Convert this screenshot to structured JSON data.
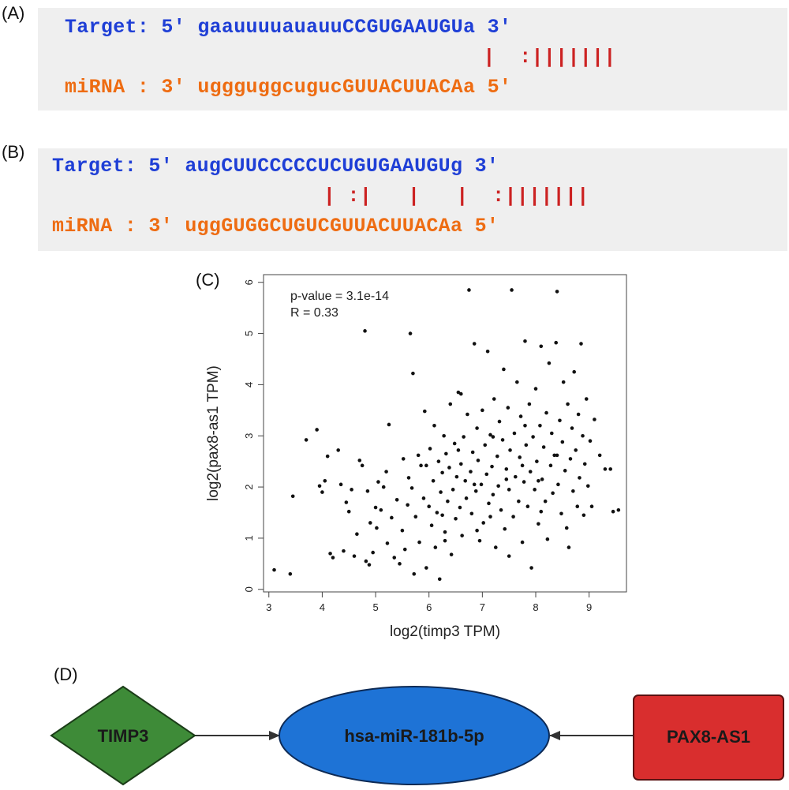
{
  "panels": {
    "A": {
      "label": "(A)",
      "target_line": "Target: 5' gaauuuuauauuCCGUGAAUGUa 3'",
      "pair_line": "           |  :|||||||",
      "mirna_line": "miRNA : 3' uggguggcugucGUUACUUACAa 5'"
    },
    "B": {
      "label": "(B)",
      "target_line": "Target: 5' augCUUCCCCCUCUGUGAAUGUg 3'",
      "pair_line": "   | :|   |   |  :|||||||",
      "mirna_line": "miRNA : 3' uggGUGGCUGUCGUUACUUACAa 5'"
    },
    "C": {
      "label": "(C)"
    },
    "D": {
      "label": "(D)"
    }
  },
  "chart_data": {
    "type": "scatter",
    "xlabel": "log2(timp3 TPM)",
    "ylabel": "log2(pax8-as1 TPM)",
    "xlim": [
      2.9,
      9.7
    ],
    "ylim": [
      -0.05,
      6.15
    ],
    "xticks": [
      "3",
      "4",
      "5",
      "6",
      "7",
      "8",
      "9"
    ],
    "yticks": [
      "0",
      "1",
      "2",
      "3",
      "4",
      "5",
      "6"
    ],
    "annotations": [
      "p-value = 3.1e-14",
      "R = 0.33"
    ],
    "points": [
      [
        3.1,
        0.38
      ],
      [
        3.4,
        0.3
      ],
      [
        3.45,
        1.82
      ],
      [
        3.7,
        2.92
      ],
      [
        3.9,
        3.12
      ],
      [
        3.95,
        2.02
      ],
      [
        4.0,
        1.9
      ],
      [
        4.05,
        2.12
      ],
      [
        4.1,
        2.6
      ],
      [
        4.15,
        0.7
      ],
      [
        4.2,
        0.62
      ],
      [
        4.3,
        2.72
      ],
      [
        4.35,
        2.05
      ],
      [
        4.4,
        0.75
      ],
      [
        4.45,
        1.7
      ],
      [
        4.5,
        1.52
      ],
      [
        4.55,
        1.95
      ],
      [
        4.6,
        0.65
      ],
      [
        4.65,
        1.08
      ],
      [
        4.7,
        2.52
      ],
      [
        4.75,
        2.42
      ],
      [
        4.8,
        5.05
      ],
      [
        4.82,
        0.55
      ],
      [
        4.85,
        1.92
      ],
      [
        4.88,
        0.48
      ],
      [
        4.9,
        1.3
      ],
      [
        4.95,
        0.72
      ],
      [
        5.0,
        1.6
      ],
      [
        5.02,
        1.2
      ],
      [
        5.05,
        2.1
      ],
      [
        5.1,
        1.55
      ],
      [
        5.15,
        2.0
      ],
      [
        5.2,
        2.3
      ],
      [
        5.22,
        0.9
      ],
      [
        5.25,
        3.22
      ],
      [
        5.3,
        1.4
      ],
      [
        5.35,
        0.62
      ],
      [
        5.4,
        1.75
      ],
      [
        5.45,
        0.5
      ],
      [
        5.5,
        1.15
      ],
      [
        5.52,
        2.55
      ],
      [
        5.55,
        0.78
      ],
      [
        5.6,
        1.65
      ],
      [
        5.62,
        2.18
      ],
      [
        5.65,
        5.0
      ],
      [
        5.68,
        1.98
      ],
      [
        5.7,
        4.22
      ],
      [
        5.72,
        0.3
      ],
      [
        5.75,
        1.42
      ],
      [
        5.8,
        2.62
      ],
      [
        5.82,
        0.92
      ],
      [
        5.85,
        2.42
      ],
      [
        5.9,
        1.78
      ],
      [
        5.92,
        3.48
      ],
      [
        5.95,
        0.42
      ],
      [
        6.0,
        1.62
      ],
      [
        6.02,
        2.75
      ],
      [
        6.05,
        1.25
      ],
      [
        6.08,
        2.12
      ],
      [
        6.1,
        3.2
      ],
      [
        6.12,
        0.82
      ],
      [
        6.15,
        1.5
      ],
      [
        6.18,
        2.5
      ],
      [
        6.2,
        0.2
      ],
      [
        6.22,
        1.9
      ],
      [
        6.25,
        2.28
      ],
      [
        6.28,
        3.0
      ],
      [
        6.3,
        1.12
      ],
      [
        6.32,
        2.65
      ],
      [
        6.35,
        1.72
      ],
      [
        6.38,
        2.38
      ],
      [
        6.4,
        3.62
      ],
      [
        6.42,
        0.68
      ],
      [
        6.45,
        1.95
      ],
      [
        6.48,
        2.85
      ],
      [
        6.5,
        1.38
      ],
      [
        6.52,
        2.2
      ],
      [
        6.55,
        3.85
      ],
      [
        6.58,
        1.6
      ],
      [
        6.6,
        2.45
      ],
      [
        6.62,
        1.05
      ],
      [
        6.65,
        2.98
      ],
      [
        6.68,
        2.12
      ],
      [
        6.7,
        1.78
      ],
      [
        6.72,
        3.42
      ],
      [
        6.75,
        5.85
      ],
      [
        6.78,
        2.3
      ],
      [
        6.8,
        1.48
      ],
      [
        6.82,
        2.68
      ],
      [
        6.85,
        4.8
      ],
      [
        6.88,
        1.92
      ],
      [
        6.9,
        3.15
      ],
      [
        6.92,
        2.52
      ],
      [
        6.95,
        0.95
      ],
      [
        6.98,
        2.05
      ],
      [
        7.0,
        3.5
      ],
      [
        7.02,
        1.3
      ],
      [
        7.05,
        2.82
      ],
      [
        7.08,
        2.25
      ],
      [
        7.1,
        4.65
      ],
      [
        7.12,
        1.68
      ],
      [
        7.15,
        3.02
      ],
      [
        7.18,
        2.4
      ],
      [
        7.2,
        1.85
      ],
      [
        7.22,
        3.72
      ],
      [
        7.25,
        0.82
      ],
      [
        7.28,
        2.6
      ],
      [
        7.3,
        2.02
      ],
      [
        7.32,
        3.28
      ],
      [
        7.35,
        1.55
      ],
      [
        7.38,
        2.92
      ],
      [
        7.4,
        4.3
      ],
      [
        7.42,
        1.18
      ],
      [
        7.45,
        2.35
      ],
      [
        7.48,
        3.55
      ],
      [
        7.5,
        1.95
      ],
      [
        7.52,
        2.72
      ],
      [
        7.55,
        5.85
      ],
      [
        7.58,
        1.42
      ],
      [
        7.6,
        3.05
      ],
      [
        7.62,
        2.2
      ],
      [
        7.65,
        4.05
      ],
      [
        7.68,
        1.72
      ],
      [
        7.7,
        2.58
      ],
      [
        7.72,
        3.38
      ],
      [
        7.75,
        0.92
      ],
      [
        7.78,
        2.1
      ],
      [
        7.8,
        4.85
      ],
      [
        7.82,
        2.82
      ],
      [
        7.85,
        1.62
      ],
      [
        7.88,
        3.62
      ],
      [
        7.9,
        2.3
      ],
      [
        7.92,
        0.42
      ],
      [
        7.95,
        2.98
      ],
      [
        7.98,
        1.95
      ],
      [
        8.0,
        3.92
      ],
      [
        8.02,
        2.5
      ],
      [
        8.05,
        1.28
      ],
      [
        8.08,
        3.2
      ],
      [
        8.1,
        4.75
      ],
      [
        8.12,
        2.15
      ],
      [
        8.15,
        2.78
      ],
      [
        8.18,
        1.72
      ],
      [
        8.2,
        3.45
      ],
      [
        8.22,
        0.98
      ],
      [
        8.25,
        4.42
      ],
      [
        8.28,
        2.42
      ],
      [
        8.3,
        3.05
      ],
      [
        8.32,
        1.88
      ],
      [
        8.35,
        2.62
      ],
      [
        8.38,
        4.82
      ],
      [
        8.4,
        5.82
      ],
      [
        8.42,
        2.05
      ],
      [
        8.45,
        3.3
      ],
      [
        8.48,
        1.48
      ],
      [
        8.5,
        2.88
      ],
      [
        8.52,
        4.05
      ],
      [
        8.55,
        2.32
      ],
      [
        8.58,
        1.2
      ],
      [
        8.6,
        3.62
      ],
      [
        8.62,
        0.82
      ],
      [
        8.65,
        2.55
      ],
      [
        8.68,
        3.15
      ],
      [
        8.7,
        1.92
      ],
      [
        8.72,
        4.25
      ],
      [
        8.75,
        2.72
      ],
      [
        8.78,
        1.62
      ],
      [
        8.8,
        3.42
      ],
      [
        8.82,
        2.18
      ],
      [
        8.85,
        4.8
      ],
      [
        8.88,
        3.0
      ],
      [
        8.9,
        1.45
      ],
      [
        8.92,
        2.45
      ],
      [
        8.95,
        3.72
      ],
      [
        8.98,
        2.02
      ],
      [
        9.02,
        2.9
      ],
      [
        9.05,
        1.62
      ],
      [
        9.1,
        3.32
      ],
      [
        9.2,
        2.62
      ],
      [
        9.3,
        2.35
      ],
      [
        9.4,
        2.35
      ],
      [
        9.45,
        1.52
      ],
      [
        9.55,
        1.55
      ],
      [
        6.3,
        0.95
      ],
      [
        6.6,
        3.82
      ],
      [
        6.9,
        1.15
      ],
      [
        7.2,
        2.98
      ],
      [
        7.5,
        0.65
      ],
      [
        7.8,
        3.2
      ],
      [
        8.1,
        1.52
      ],
      [
        8.4,
        2.62
      ],
      [
        5.95,
        2.42
      ],
      [
        6.25,
        1.45
      ],
      [
        6.55,
        2.72
      ],
      [
        6.85,
        2.05
      ],
      [
        7.15,
        1.42
      ],
      [
        7.45,
        2.15
      ],
      [
        7.75,
        2.42
      ],
      [
        8.05,
        2.12
      ]
    ]
  },
  "network": {
    "nodes": [
      {
        "id": "timp3",
        "label": "TIMP3",
        "color": "#3e8b38"
      },
      {
        "id": "mir",
        "label": "hsa-miR-181b-5p",
        "color": "#1e73d6"
      },
      {
        "id": "pax8",
        "label": "PAX8-AS1",
        "color": "#d92e2e"
      }
    ]
  }
}
